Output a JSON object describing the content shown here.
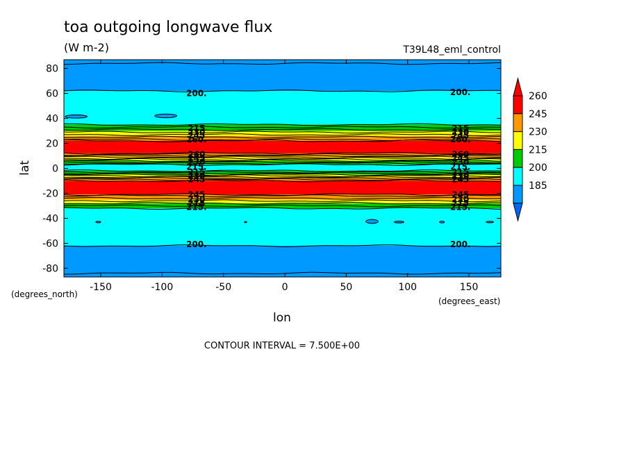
{
  "chart_data": {
    "type": "heatmap",
    "title": "toa outgoing longwave flux",
    "units": "(W m-2)",
    "run_label": "T39L48_eml_control",
    "xlabel": "lon",
    "ylabel": "lat",
    "x_units_label": "(degrees_east)",
    "y_units_label": "(degrees_north)",
    "xlim": [
      -180,
      176
    ],
    "ylim": [
      -87,
      87
    ],
    "x_ticks": [
      -150,
      -100,
      -50,
      0,
      50,
      100,
      150
    ],
    "y_ticks": [
      80,
      60,
      40,
      20,
      0,
      -20,
      -40,
      -60,
      -80
    ],
    "x_tick_labels": [
      "-150",
      "-100",
      "-50",
      "0",
      "50",
      "100",
      "150"
    ],
    "y_tick_labels": [
      "80",
      "60",
      "40",
      "20",
      "0",
      "-20",
      "-40",
      "-60",
      "-80"
    ],
    "contour_interval_text": "CONTOUR INTERVAL = 7.500E+00",
    "levels": [
      185,
      200,
      215,
      230,
      245,
      260
    ],
    "colorbar_labels": [
      "260",
      "245",
      "230",
      "215",
      "200",
      "185"
    ],
    "colorbar_colors": [
      "#ff0000",
      "#ff9900",
      "#ffff00",
      "#00cc00",
      "#00ffff",
      "#0099ff"
    ],
    "colorbar_top_arrow_color": "#ff0000",
    "colorbar_bottom_arrow_color": "#0066ff",
    "bands": [
      {
        "lat_from": 87,
        "lat_to": 62,
        "color": "#0099ff"
      },
      {
        "lat_from": 62,
        "lat_to": 35,
        "color": "#00ffff"
      },
      {
        "lat_from": 35,
        "lat_to": 30,
        "color": "#00cc00"
      },
      {
        "lat_from": 30,
        "lat_to": 26,
        "color": "#ffff00"
      },
      {
        "lat_from": 26,
        "lat_to": 22,
        "color": "#ff9900"
      },
      {
        "lat_from": 22,
        "lat_to": 12,
        "color": "#ff0000"
      },
      {
        "lat_from": 12,
        "lat_to": 9,
        "color": "#ff9900"
      },
      {
        "lat_from": 9,
        "lat_to": 6,
        "color": "#ffff00"
      },
      {
        "lat_from": 6,
        "lat_to": 3,
        "color": "#00cc00"
      },
      {
        "lat_from": 3,
        "lat_to": -2,
        "color": "#00ffff"
      },
      {
        "lat_from": -2,
        "lat_to": -5,
        "color": "#00cc00"
      },
      {
        "lat_from": -5,
        "lat_to": -7,
        "color": "#ffff00"
      },
      {
        "lat_from": -7,
        "lat_to": -10,
        "color": "#ff9900"
      },
      {
        "lat_from": -10,
        "lat_to": -21,
        "color": "#ff0000"
      },
      {
        "lat_from": -21,
        "lat_to": -25,
        "color": "#ff9900"
      },
      {
        "lat_from": -25,
        "lat_to": -28,
        "color": "#ffff00"
      },
      {
        "lat_from": -28,
        "lat_to": -32,
        "color": "#00cc00"
      },
      {
        "lat_from": -32,
        "lat_to": -62,
        "color": "#00ffff"
      },
      {
        "lat_from": -62,
        "lat_to": -87,
        "color": "#0099ff"
      }
    ],
    "contour_lines_lat": [
      84,
      62,
      35,
      33,
      31,
      29,
      27,
      25,
      23,
      22,
      12,
      11,
      10,
      9,
      8,
      7,
      6,
      5,
      4,
      3,
      -2,
      -3,
      -4,
      -5,
      -6,
      -7,
      -8,
      -9,
      -10,
      -21,
      -22,
      -24,
      -26,
      -28,
      -30,
      -32,
      -62,
      -84
    ],
    "contour_labels": [
      {
        "lon": -72,
        "lat": 60,
        "text": "200."
      },
      {
        "lon": 143,
        "lat": 61,
        "text": "200."
      },
      {
        "lon": -72,
        "lat": 32,
        "text": "215"
      },
      {
        "lon": -72,
        "lat": 29,
        "text": "230"
      },
      {
        "lon": -72,
        "lat": 26,
        "text": "245"
      },
      {
        "lon": -72,
        "lat": 23,
        "text": "260."
      },
      {
        "lon": 143,
        "lat": 32,
        "text": "215"
      },
      {
        "lon": 143,
        "lat": 29,
        "text": "230"
      },
      {
        "lon": 143,
        "lat": 26,
        "text": "245"
      },
      {
        "lon": 143,
        "lat": 23,
        "text": "260."
      },
      {
        "lon": -72,
        "lat": 11,
        "text": "260"
      },
      {
        "lon": -72,
        "lat": 8,
        "text": "245"
      },
      {
        "lon": -72,
        "lat": 5,
        "text": "230"
      },
      {
        "lon": -72,
        "lat": 1,
        "text": "215."
      },
      {
        "lon": 143,
        "lat": 11,
        "text": "260"
      },
      {
        "lon": 143,
        "lat": 8,
        "text": "245"
      },
      {
        "lon": 143,
        "lat": 5,
        "text": "230"
      },
      {
        "lon": 143,
        "lat": 1,
        "text": "215."
      },
      {
        "lon": -72,
        "lat": -3,
        "text": "215"
      },
      {
        "lon": -72,
        "lat": -6,
        "text": "230"
      },
      {
        "lon": -72,
        "lat": -9,
        "text": "245"
      },
      {
        "lon": 143,
        "lat": -3,
        "text": "215"
      },
      {
        "lon": 143,
        "lat": -6,
        "text": "230"
      },
      {
        "lon": 143,
        "lat": -9,
        "text": "245"
      },
      {
        "lon": -72,
        "lat": -21,
        "text": "245"
      },
      {
        "lon": -72,
        "lat": -25,
        "text": "230"
      },
      {
        "lon": -72,
        "lat": -28,
        "text": "215"
      },
      {
        "lon": -72,
        "lat": -31,
        "text": "215."
      },
      {
        "lon": 143,
        "lat": -21,
        "text": "245"
      },
      {
        "lon": 143,
        "lat": -25,
        "text": "230"
      },
      {
        "lon": 143,
        "lat": -28,
        "text": "215"
      },
      {
        "lon": 143,
        "lat": -31,
        "text": "215."
      },
      {
        "lon": -72,
        "lat": -61,
        "text": "200."
      },
      {
        "lon": 143,
        "lat": -61,
        "text": "200."
      }
    ],
    "blobs": [
      {
        "lon": -170,
        "lat": 41.5,
        "rlon": 9,
        "rlat": 1.3,
        "color": "#0099ff"
      },
      {
        "lon": -97,
        "lat": 42,
        "rlon": 9,
        "rlat": 1.5,
        "color": "#0099ff"
      },
      {
        "lon": -152,
        "lat": -43,
        "rlon": 2,
        "rlat": 0.6,
        "color": "#0099ff"
      },
      {
        "lon": -32,
        "lat": -43,
        "rlon": 1,
        "rlat": 0.5,
        "color": "#0099ff"
      },
      {
        "lon": 71,
        "lat": -42.5,
        "rlon": 5,
        "rlat": 1.6,
        "color": "#0099ff"
      },
      {
        "lon": 93,
        "lat": -43,
        "rlon": 4,
        "rlat": 0.7,
        "color": "#0099ff"
      },
      {
        "lon": 128,
        "lat": -43,
        "rlon": 2,
        "rlat": 0.7,
        "color": "#0099ff"
      },
      {
        "lon": 167,
        "lat": -43,
        "rlon": 3,
        "rlat": 0.6,
        "color": "#0099ff"
      }
    ],
    "grid": false,
    "legend": "right colorbar"
  }
}
